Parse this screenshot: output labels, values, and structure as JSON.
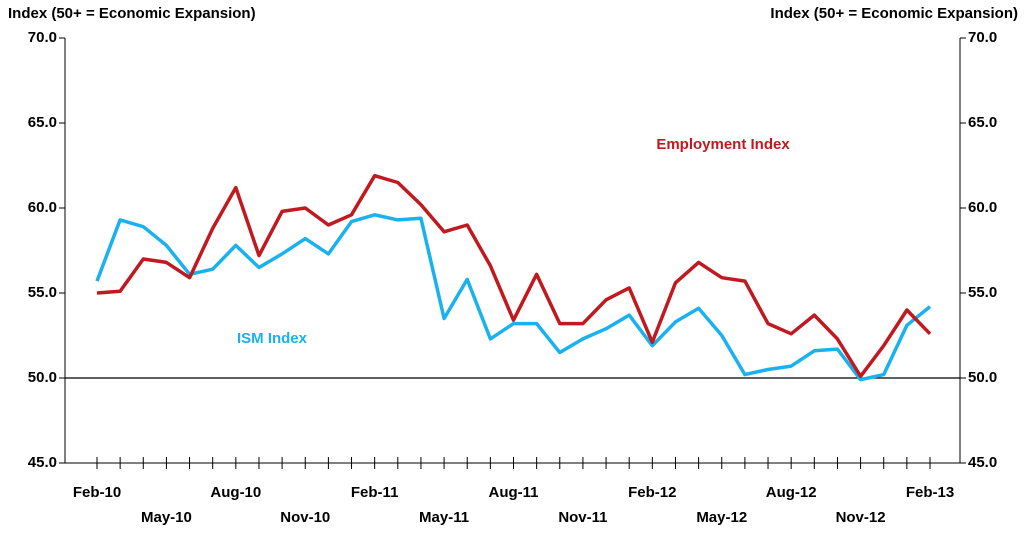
{
  "chart_data": {
    "type": "line",
    "y_axis_label": "Index (50+ = Economic Expansion)",
    "y2_axis_label": "Index (50+ = Economic Expansion)",
    "categories": [
      "Feb-10",
      null,
      null,
      "May-10",
      null,
      null,
      "Aug-10",
      null,
      null,
      "Nov-10",
      null,
      null,
      "Feb-11",
      null,
      null,
      "May-11",
      null,
      null,
      "Aug-11",
      null,
      null,
      "Nov-11",
      null,
      null,
      "Feb-12",
      null,
      null,
      "May-12",
      null,
      null,
      "Aug-12",
      null,
      null,
      "Nov-12",
      null,
      null,
      "Feb-13"
    ],
    "series": [
      {
        "name": "ISM Index",
        "color": "#1ab2ee",
        "values": [
          55.7,
          59.3,
          58.9,
          57.8,
          56.1,
          56.4,
          57.8,
          56.5,
          57.3,
          58.2,
          57.3,
          59.2,
          59.6,
          59.3,
          59.4,
          53.5,
          55.8,
          52.3,
          53.2,
          53.2,
          51.5,
          52.3,
          52.9,
          53.7,
          51.9,
          53.3,
          54.1,
          52.5,
          50.2,
          50.5,
          50.7,
          51.6,
          51.7,
          49.9,
          50.2,
          53.1,
          54.2
        ]
      },
      {
        "name": "Employment Index",
        "color": "#c0191f",
        "values": [
          55.0,
          55.1,
          57.0,
          56.8,
          55.9,
          58.8,
          61.2,
          57.2,
          59.8,
          60.0,
          59.0,
          59.6,
          61.9,
          61.5,
          60.2,
          58.6,
          59.0,
          56.6,
          53.4,
          56.1,
          53.2,
          53.2,
          54.6,
          55.3,
          52.1,
          55.6,
          56.8,
          55.9,
          55.7,
          53.2,
          52.6,
          53.7,
          52.3,
          50.1,
          51.9,
          54.0,
          52.6
        ]
      }
    ],
    "ylim": [
      45,
      70
    ],
    "yticks": [
      {
        "value": 45,
        "label": "45.0"
      },
      {
        "value": 50,
        "label": "50.0"
      },
      {
        "value": 55,
        "label": "55.0"
      },
      {
        "value": 60,
        "label": "60.0"
      },
      {
        "value": 65,
        "label": "65.0"
      },
      {
        "value": 70,
        "label": "70.0"
      }
    ],
    "y2lim": [
      45,
      70
    ],
    "y2ticks": [
      {
        "value": 45,
        "label": "45.0"
      },
      {
        "value": 50,
        "label": "50.0"
      },
      {
        "value": 55,
        "label": "55.0"
      },
      {
        "value": 60,
        "label": "60.0"
      },
      {
        "value": 65,
        "label": "65.0"
      },
      {
        "value": 70,
        "label": "70.0"
      }
    ],
    "reference_line": 50
  }
}
